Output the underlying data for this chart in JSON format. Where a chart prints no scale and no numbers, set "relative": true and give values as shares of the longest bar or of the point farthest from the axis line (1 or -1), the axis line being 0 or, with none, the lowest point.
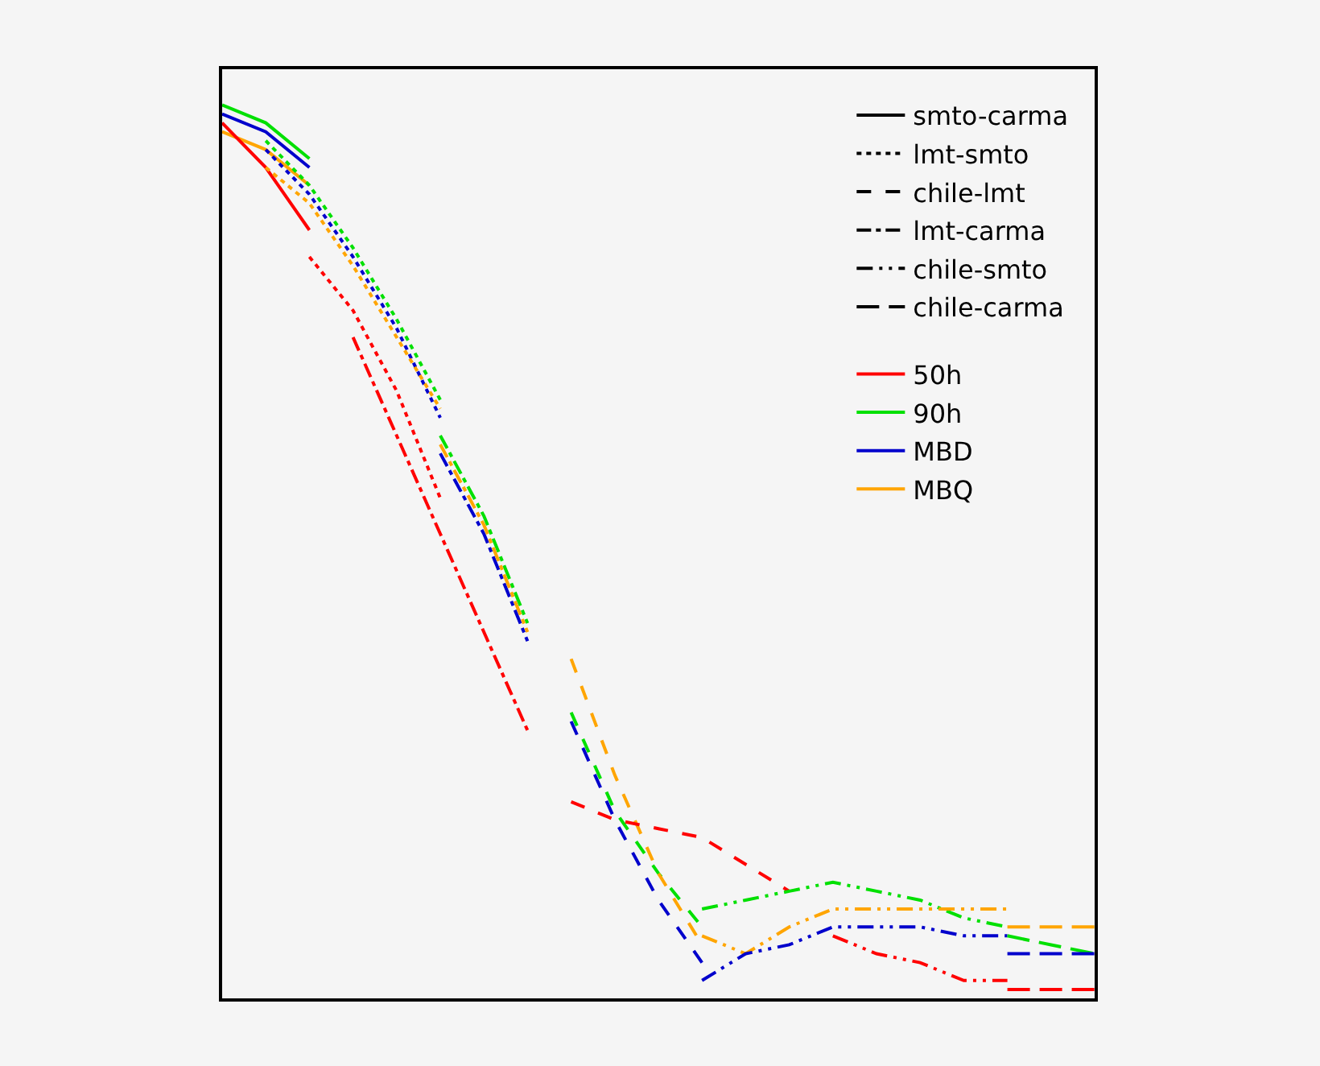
{
  "chart_data": {
    "type": "line",
    "relative": true,
    "legend": "top right",
    "marker": "none",
    "categories": [
      null,
      null,
      null,
      null,
      null,
      null,
      null,
      null,
      null,
      null,
      null,
      null,
      null,
      null,
      null,
      null,
      null,
      null,
      null,
      null,
      null
    ],
    "series": [
      {
        "name": "smto-carma",
        "color": "#000000",
        "line_style": "solid",
        "values": [
          null,
          null,
          null,
          null,
          null,
          null,
          null,
          null,
          null,
          null,
          null,
          null,
          null,
          null,
          null,
          null,
          null,
          null,
          null,
          null,
          null
        ]
      },
      {
        "name": "lmt-smto",
        "color": "#000000",
        "line_style": "dotted",
        "values": [
          null,
          null,
          null,
          null,
          null,
          null,
          null,
          null,
          null,
          null,
          null,
          null,
          null,
          null,
          null,
          null,
          null,
          null,
          null,
          null,
          null
        ]
      },
      {
        "name": "chile-lmt",
        "color": "#000000",
        "line_style": "dashed",
        "values": [
          null,
          null,
          null,
          null,
          null,
          null,
          null,
          null,
          null,
          null,
          null,
          null,
          null,
          null,
          null,
          null,
          null,
          null,
          null,
          null,
          null
        ]
      },
      {
        "name": "lmt-carma",
        "color": "#000000",
        "line_style": "dashdot",
        "values": [
          null,
          null,
          null,
          null,
          null,
          null,
          null,
          null,
          null,
          null,
          null,
          null,
          null,
          null,
          null,
          null,
          null,
          null,
          null,
          null,
          null
        ]
      },
      {
        "name": "chile-smto",
        "color": "#000000",
        "line_style": "dashdotdot",
        "values": [
          null,
          null,
          null,
          null,
          null,
          null,
          null,
          null,
          null,
          null,
          null,
          null,
          null,
          null,
          null,
          null,
          null,
          null,
          null,
          null,
          null
        ]
      },
      {
        "name": "chile-carma",
        "color": "#000000",
        "line_style": "longdash",
        "values": [
          null,
          null,
          null,
          null,
          null,
          null,
          null,
          null,
          null,
          null,
          null,
          null,
          null,
          null,
          null,
          null,
          null,
          null,
          null,
          null,
          null
        ]
      },
      {
        "name": "50h",
        "color": "#ff0000",
        "line_style": "solid",
        "values": [
          null,
          null,
          null,
          null,
          null,
          null,
          null,
          null,
          null,
          null,
          null,
          null,
          null,
          null,
          null,
          null,
          null,
          null,
          null,
          null,
          null
        ]
      },
      {
        "name": "90h",
        "color": "#00e000",
        "line_style": "solid",
        "values": [
          null,
          null,
          null,
          null,
          null,
          null,
          null,
          null,
          null,
          null,
          null,
          null,
          null,
          null,
          null,
          null,
          null,
          null,
          null,
          null,
          null
        ]
      },
      {
        "name": "MBD",
        "color": "#0000cc",
        "line_style": "solid",
        "values": [
          null,
          null,
          null,
          null,
          null,
          null,
          null,
          null,
          null,
          null,
          null,
          null,
          null,
          null,
          null,
          null,
          null,
          null,
          null,
          null,
          null
        ]
      },
      {
        "name": "MBQ",
        "color": "#ffa500",
        "line_style": "solid",
        "values": [
          null,
          null,
          null,
          null,
          null,
          null,
          null,
          null,
          null,
          null,
          null,
          null,
          null,
          null,
          null,
          null,
          null,
          null,
          null,
          null,
          null
        ]
      },
      {
        "color": "#00e000",
        "line_style": "solid",
        "values": [
          1.0,
          0.98,
          0.94,
          null,
          null,
          null,
          null,
          null,
          null,
          null,
          null,
          null,
          null,
          null,
          null,
          null,
          null,
          null,
          null,
          null,
          null
        ]
      },
      {
        "color": "#0000cc",
        "line_style": "solid",
        "values": [
          0.99,
          0.97,
          0.93,
          null,
          null,
          null,
          null,
          null,
          null,
          null,
          null,
          null,
          null,
          null,
          null,
          null,
          null,
          null,
          null,
          null,
          null
        ]
      },
      {
        "color": "#ffa500",
        "line_style": "solid",
        "values": [
          0.97,
          0.95,
          0.91,
          null,
          null,
          null,
          null,
          null,
          null,
          null,
          null,
          null,
          null,
          null,
          null,
          null,
          null,
          null,
          null,
          null,
          null
        ]
      },
      {
        "color": "#ff0000",
        "line_style": "solid",
        "values": [
          0.98,
          0.93,
          0.86,
          null,
          null,
          null,
          null,
          null,
          null,
          null,
          null,
          null,
          null,
          null,
          null,
          null,
          null,
          null,
          null,
          null,
          null
        ]
      },
      {
        "color": "#00e000",
        "line_style": "dotted",
        "values": [
          null,
          0.96,
          0.91,
          0.84,
          0.76,
          0.67,
          null,
          null,
          null,
          null,
          null,
          null,
          null,
          null,
          null,
          null,
          null,
          null,
          null,
          null,
          null
        ]
      },
      {
        "color": "#0000cc",
        "line_style": "dotted",
        "values": [
          null,
          0.95,
          0.9,
          0.83,
          0.75,
          0.65,
          null,
          null,
          null,
          null,
          null,
          null,
          null,
          null,
          null,
          null,
          null,
          null,
          null,
          null,
          null
        ]
      },
      {
        "color": "#ffa500",
        "line_style": "dotted",
        "values": [
          null,
          0.93,
          0.89,
          0.82,
          0.74,
          0.66,
          null,
          null,
          null,
          null,
          null,
          null,
          null,
          null,
          null,
          null,
          null,
          null,
          null,
          null,
          null
        ]
      },
      {
        "color": "#ff0000",
        "line_style": "dotted",
        "values": [
          null,
          null,
          0.83,
          0.77,
          0.68,
          0.56,
          null,
          null,
          null,
          null,
          null,
          null,
          null,
          null,
          null,
          null,
          null,
          null,
          null,
          null,
          null
        ]
      },
      {
        "color": "#00e000",
        "line_style": "dashdot",
        "values": [
          null,
          null,
          null,
          null,
          null,
          0.63,
          0.54,
          0.42,
          null,
          null,
          null,
          null,
          null,
          null,
          null,
          null,
          null,
          null,
          null,
          null,
          null
        ]
      },
      {
        "color": "#0000cc",
        "line_style": "dashdot",
        "values": [
          null,
          null,
          null,
          null,
          null,
          0.61,
          0.52,
          0.4,
          null,
          null,
          null,
          null,
          null,
          null,
          null,
          null,
          null,
          null,
          null,
          null,
          null
        ]
      },
      {
        "color": "#ffa500",
        "line_style": "dashdot",
        "values": [
          null,
          null,
          null,
          null,
          null,
          0.62,
          0.53,
          0.41,
          null,
          null,
          null,
          null,
          null,
          null,
          null,
          null,
          null,
          null,
          null,
          null,
          null
        ]
      },
      {
        "color": "#ff0000",
        "line_style": "dashdot",
        "values": [
          null,
          null,
          null,
          0.74,
          0.63,
          0.52,
          0.41,
          0.3,
          null,
          null,
          null,
          null,
          null,
          null,
          null,
          null,
          null,
          null,
          null,
          null,
          null
        ]
      },
      {
        "color": "#00e000",
        "line_style": "dashed",
        "values": [
          null,
          null,
          null,
          null,
          null,
          null,
          null,
          null,
          0.32,
          0.21,
          0.14,
          0.08,
          null,
          null,
          null,
          null,
          null,
          null,
          null,
          null,
          null
        ]
      },
      {
        "color": "#0000cc",
        "line_style": "dashed",
        "values": [
          null,
          null,
          null,
          null,
          null,
          null,
          null,
          null,
          0.31,
          0.2,
          0.11,
          0.04,
          null,
          null,
          null,
          null,
          null,
          null,
          null,
          null,
          null
        ]
      },
      {
        "color": "#ffa500",
        "line_style": "dashed",
        "values": [
          null,
          null,
          null,
          null,
          null,
          null,
          null,
          null,
          0.38,
          0.25,
          0.14,
          0.06,
          null,
          null,
          null,
          null,
          null,
          null,
          null,
          null,
          null
        ]
      },
      {
        "color": "#ff0000",
        "line_style": "dashed",
        "values": [
          null,
          null,
          null,
          null,
          null,
          null,
          null,
          null,
          0.22,
          0.2,
          0.19,
          0.18,
          0.15,
          0.12,
          null,
          null,
          null,
          null,
          null,
          null,
          null
        ]
      },
      {
        "color": "#00e000",
        "line_style": "dashdotdot",
        "values": [
          null,
          null,
          null,
          null,
          null,
          null,
          null,
          null,
          null,
          null,
          null,
          0.1,
          0.11,
          0.12,
          0.13,
          0.12,
          0.11,
          0.09,
          0.08,
          null,
          null
        ]
      },
      {
        "color": "#ffa500",
        "line_style": "dashdotdot",
        "values": [
          null,
          null,
          null,
          null,
          null,
          null,
          null,
          null,
          null,
          null,
          null,
          0.07,
          0.05,
          0.08,
          0.1,
          0.1,
          0.1,
          0.1,
          0.1,
          null,
          null
        ]
      },
      {
        "color": "#0000cc",
        "line_style": "dashdotdot",
        "values": [
          null,
          null,
          null,
          null,
          null,
          null,
          null,
          null,
          null,
          null,
          null,
          0.02,
          0.05,
          0.06,
          0.08,
          0.08,
          0.08,
          0.07,
          0.07,
          null,
          null
        ]
      },
      {
        "color": "#ff0000",
        "line_style": "dashdotdot",
        "values": [
          null,
          null,
          null,
          null,
          null,
          null,
          null,
          null,
          null,
          null,
          null,
          null,
          null,
          null,
          0.07,
          0.05,
          0.04,
          0.02,
          0.02,
          null,
          null
        ]
      },
      {
        "color": "#ffa500",
        "line_style": "longdash",
        "values": [
          null,
          null,
          null,
          null,
          null,
          null,
          null,
          null,
          null,
          null,
          null,
          null,
          null,
          null,
          null,
          null,
          null,
          null,
          0.08,
          0.08,
          0.08
        ]
      },
      {
        "color": "#00e000",
        "line_style": "longdash",
        "values": [
          null,
          null,
          null,
          null,
          null,
          null,
          null,
          null,
          null,
          null,
          null,
          null,
          null,
          null,
          null,
          null,
          null,
          null,
          0.07,
          0.06,
          0.05
        ]
      },
      {
        "color": "#0000cc",
        "line_style": "longdash",
        "values": [
          null,
          null,
          null,
          null,
          null,
          null,
          null,
          null,
          null,
          null,
          null,
          null,
          null,
          null,
          null,
          null,
          null,
          null,
          0.05,
          0.05,
          0.05
        ]
      },
      {
        "color": "#ff0000",
        "line_style": "longdash",
        "values": [
          null,
          null,
          null,
          null,
          null,
          null,
          null,
          null,
          null,
          null,
          null,
          null,
          null,
          null,
          null,
          null,
          null,
          null,
          0.01,
          0.01,
          0.01
        ]
      }
    ]
  }
}
